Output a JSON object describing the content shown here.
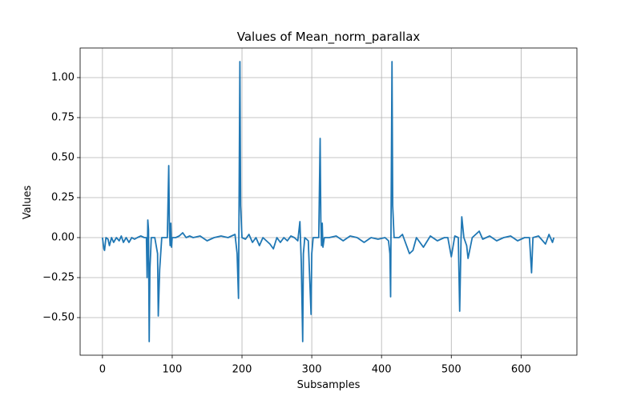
{
  "chart_data": {
    "type": "line",
    "title": "Values of Mean_norm_parallax",
    "x_label": "Subsamples",
    "y_label": "Values",
    "x": [
      0,
      2,
      3,
      5,
      8,
      10,
      13,
      16,
      20,
      24,
      27,
      30,
      34,
      38,
      42,
      46,
      50,
      55,
      60,
      63,
      64,
      65,
      66,
      67,
      68,
      70,
      75,
      79,
      80,
      82,
      85,
      90,
      93,
      95,
      96,
      97,
      98,
      99,
      100,
      105,
      110,
      115,
      120,
      125,
      130,
      140,
      150,
      160,
      170,
      180,
      185,
      190,
      193,
      195,
      197,
      198,
      200,
      205,
      210,
      215,
      220,
      225,
      230,
      240,
      245,
      250,
      255,
      260,
      265,
      270,
      275,
      280,
      283,
      285,
      287,
      288,
      290,
      295,
      299,
      300,
      302,
      305,
      310,
      312,
      313,
      314,
      315,
      316,
      318,
      325,
      335,
      345,
      355,
      365,
      375,
      385,
      395,
      405,
      410,
      412,
      413,
      415,
      416,
      418,
      425,
      430,
      435,
      440,
      445,
      450,
      460,
      470,
      480,
      490,
      495,
      500,
      505,
      510,
      512,
      514,
      515,
      518,
      522,
      524,
      530,
      540,
      545,
      555,
      565,
      575,
      585,
      595,
      605,
      612,
      615,
      617,
      625,
      635,
      640,
      645,
      647
    ],
    "series": [
      {
        "name": "Mean_norm_parallax",
        "color": "#1f77b4",
        "values": [
          0,
          -0.07,
          -0.08,
          0,
          -0.01,
          -0.05,
          0,
          -0.03,
          0,
          -0.02,
          0.01,
          -0.03,
          0,
          -0.03,
          0,
          -0.01,
          0,
          0.01,
          0,
          0,
          -0.25,
          0.11,
          0.05,
          -0.65,
          -0.2,
          0,
          0,
          -0.1,
          -0.49,
          -0.2,
          0,
          0,
          0,
          0.45,
          0.05,
          -0.05,
          0.09,
          -0.06,
          0,
          0,
          0.01,
          0.03,
          0,
          0.01,
          0,
          0.01,
          -0.02,
          0,
          0.01,
          0,
          0.01,
          0.02,
          -0.1,
          -0.38,
          1.1,
          0.2,
          0,
          -0.01,
          0.02,
          -0.03,
          0,
          -0.05,
          0,
          -0.04,
          -0.07,
          0,
          -0.03,
          0,
          -0.02,
          0.01,
          0,
          -0.02,
          0.1,
          -0.16,
          -0.65,
          -0.1,
          0,
          -0.02,
          -0.48,
          -0.1,
          0,
          0,
          0,
          0.62,
          0.1,
          -0.05,
          0.09,
          -0.06,
          0,
          0,
          0.01,
          -0.02,
          0.01,
          0,
          -0.03,
          0,
          -0.01,
          0,
          -0.02,
          -0.1,
          -0.37,
          1.1,
          0.2,
          0,
          0,
          0.02,
          -0.04,
          -0.1,
          -0.08,
          0,
          -0.06,
          0.01,
          -0.02,
          0,
          0,
          -0.12,
          0.01,
          0,
          -0.46,
          0,
          0.13,
          0,
          -0.05,
          -0.13,
          0,
          0.04,
          -0.01,
          0.01,
          -0.02,
          0,
          0.01,
          -0.02,
          0,
          0,
          -0.22,
          0,
          0.01,
          -0.04,
          0.02,
          -0.03,
          0
        ]
      }
    ],
    "xlim": [
      -32,
      680
    ],
    "ylim": [
      -0.735,
      1.185
    ],
    "xticks": [
      0,
      100,
      200,
      300,
      400,
      500,
      600
    ],
    "yticks": [
      {
        "value": -0.5,
        "label": "−0.50"
      },
      {
        "value": -0.25,
        "label": "−0.25"
      },
      {
        "value": 0,
        "label": "0.00"
      },
      {
        "value": 0.25,
        "label": "0.25"
      },
      {
        "value": 0.5,
        "label": "0.50"
      },
      {
        "value": 0.75,
        "label": "0.75"
      },
      {
        "value": 1,
        "label": "1.00"
      }
    ],
    "grid": true
  }
}
